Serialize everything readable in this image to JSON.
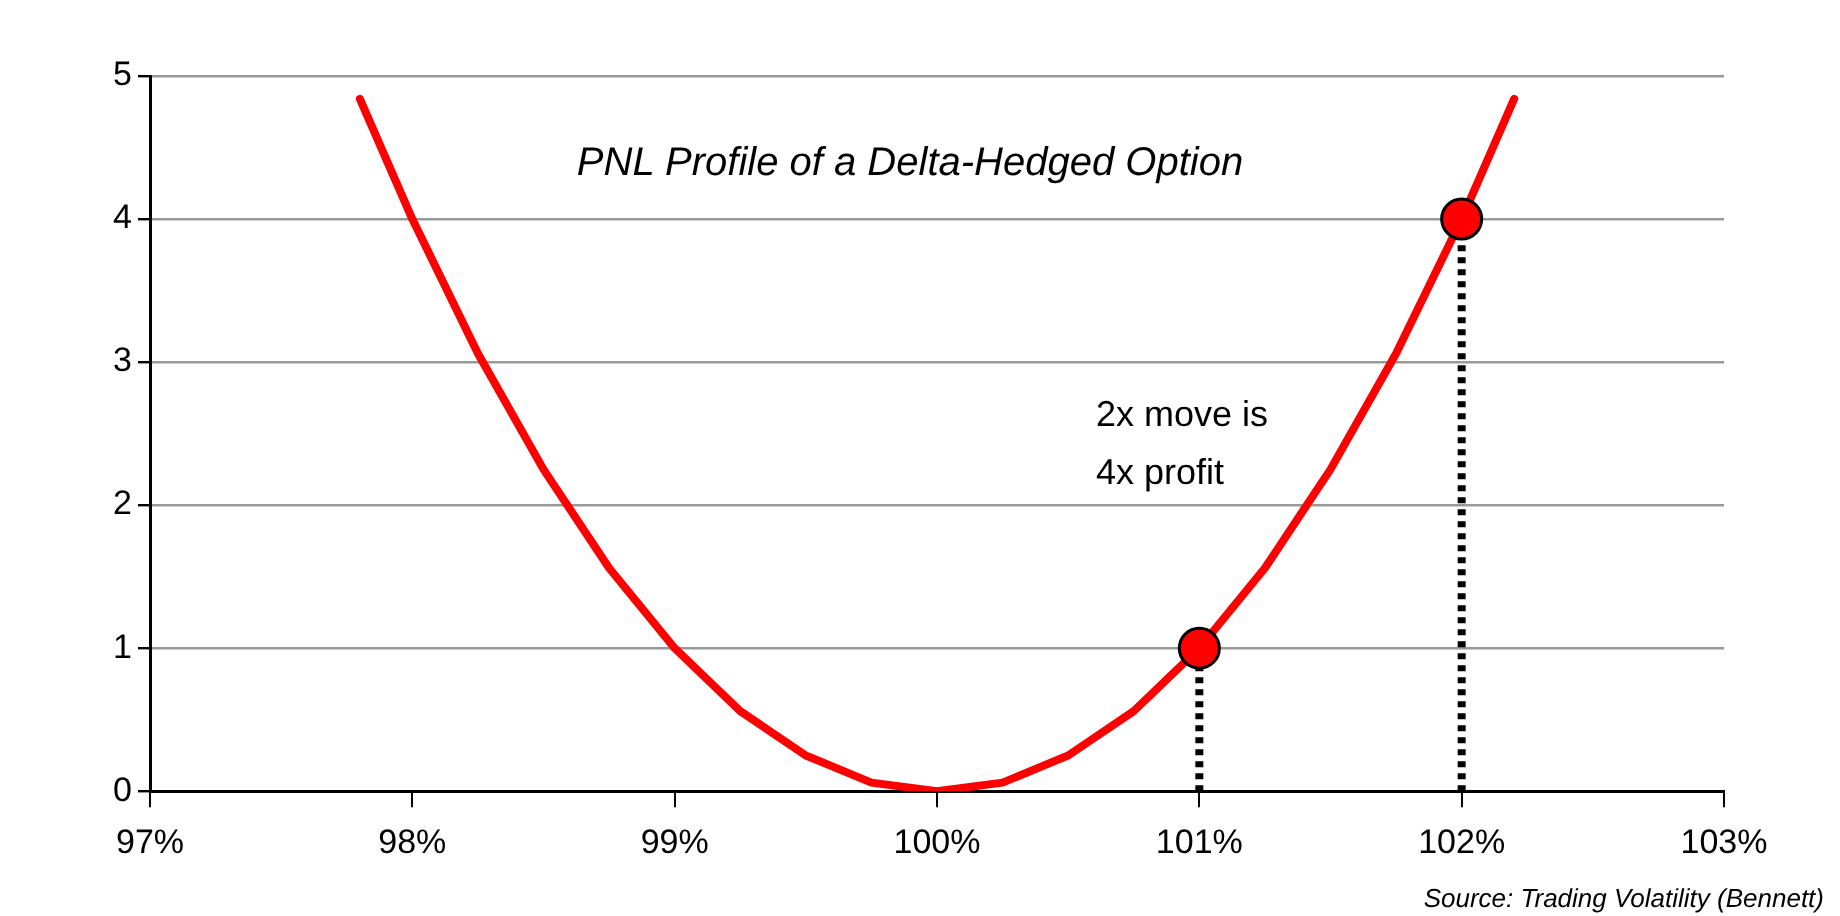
{
  "chart_data": {
    "type": "line",
    "title": "PNL Profile of a Delta-Hedged Option",
    "x": [
      97.8,
      98,
      98.25,
      98.5,
      98.75,
      99,
      99.25,
      99.5,
      99.75,
      100,
      100.25,
      100.5,
      100.75,
      101,
      101.25,
      101.5,
      101.75,
      102,
      102.2
    ],
    "series": [
      {
        "color": "#ff0000",
        "marker": "none",
        "values": [
          4.84,
          4,
          3.06,
          2.25,
          1.56,
          1,
          0.56,
          0.25,
          0.06,
          0,
          0.06,
          0.25,
          0.56,
          1,
          1.56,
          2.25,
          3.06,
          4,
          4.84
        ]
      },
      {
        "type": "lollipop",
        "x": [
          101,
          102
        ],
        "values": [
          1,
          4
        ],
        "color": "#ff0000",
        "marker": "circle",
        "line_style": "dotted"
      }
    ],
    "xlim": [
      97,
      103
    ],
    "xticks": [
      {
        "value": 97,
        "label": "97%"
      },
      {
        "value": 98,
        "label": "98%"
      },
      {
        "value": 99,
        "label": "99%"
      },
      {
        "value": 100,
        "label": "100%"
      },
      {
        "value": 101,
        "label": "101%"
      },
      {
        "value": 102,
        "label": "102%"
      },
      {
        "value": 103,
        "label": "103%"
      }
    ],
    "ylim": [
      0,
      5
    ],
    "yticks": [
      0,
      1,
      2,
      3,
      4,
      5
    ],
    "grid": "y",
    "legend": false,
    "annotations": [
      "2x move is 4x profit",
      "Source: Trading Volatility (Bennett)"
    ]
  }
}
